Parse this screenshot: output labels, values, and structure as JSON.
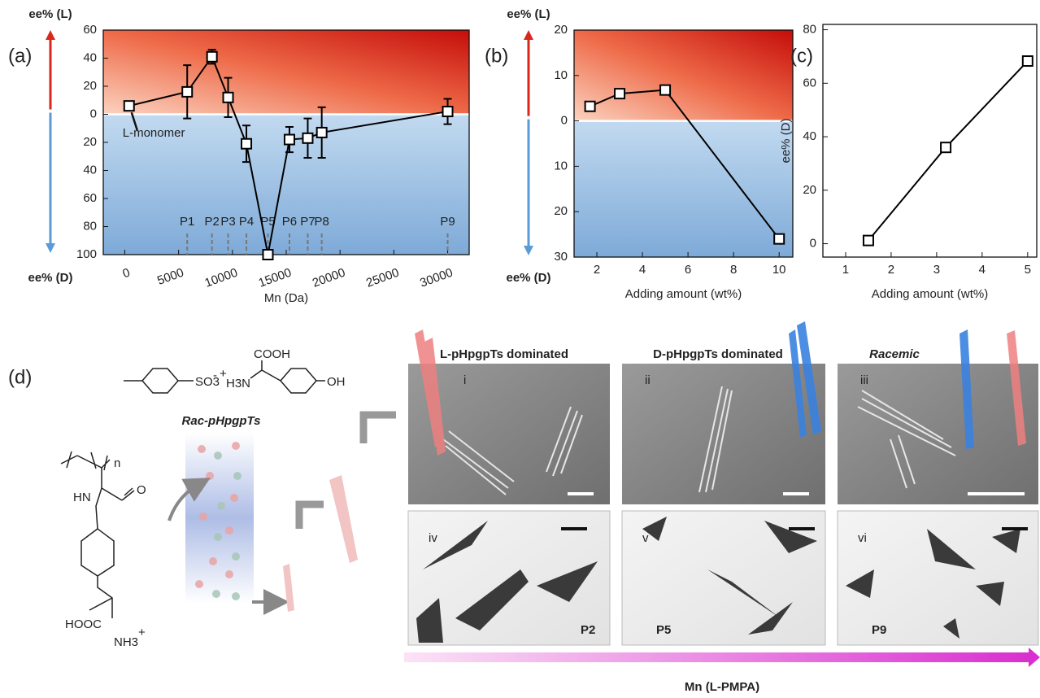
{
  "chart_data": [
    {
      "type": "line",
      "label": "(a)",
      "ylabel_top": "ee% (L)",
      "ylabel_bottom": "ee% (D)",
      "xlabel": "Mn (Da)",
      "x": [
        400,
        5800,
        8100,
        9600,
        11300,
        13300,
        15300,
        17000,
        18300,
        30000
      ],
      "values": [
        6,
        16,
        41,
        12,
        -21,
        -100,
        -18,
        -17,
        -13,
        2
      ],
      "errors": [
        null,
        19,
        5,
        14,
        13,
        null,
        9,
        14,
        18,
        9
      ],
      "color": "#000000",
      "positive_color": "#d9271c",
      "negative_color": "#5b9bd5",
      "tick_color_positive": "#000000",
      "tick_color_negative": "#5b9bd5",
      "xlim": [
        -2000,
        32000
      ],
      "xticks": [
        0,
        5000,
        10000,
        15000,
        20000,
        25000,
        30000
      ],
      "ylim": [
        -100,
        60
      ],
      "yticks": [
        {
          "value": -100,
          "label": "100"
        },
        {
          "value": -80,
          "label": "80"
        },
        {
          "value": -60,
          "label": "60"
        },
        {
          "value": -40,
          "label": "40"
        },
        {
          "value": -20,
          "label": "20"
        },
        0,
        20,
        40,
        60
      ],
      "annotation": "L-monomer",
      "sample_labels": [
        "P1",
        "P2",
        "P3",
        "P4",
        "P5",
        "P6",
        "P7",
        "P8",
        "P9"
      ]
    },
    {
      "type": "line",
      "label": "(b)",
      "ylabel_top": "ee% (L)",
      "ylabel_bottom": "ee% (D)",
      "xlabel": "Adding amount (wt%)",
      "x": [
        1.7,
        3,
        5,
        10
      ],
      "values": [
        3.2,
        6,
        6.8,
        -26
      ],
      "color": "#000000",
      "positive_color": "#d9271c",
      "negative_color": "#5b9bd5",
      "tick_color_positive": "#d9271c",
      "tick_color_negative": "#5b9bd5",
      "xlim": [
        1,
        10.6
      ],
      "xticks": [
        2,
        4,
        6,
        8,
        10
      ],
      "ylim": [
        -30,
        20
      ],
      "yticks": [
        {
          "value": -30,
          "label": "30"
        },
        {
          "value": -20,
          "label": "20"
        },
        {
          "value": -10,
          "label": "10"
        },
        0,
        10,
        20
      ]
    },
    {
      "type": "line",
      "label": "(c)",
      "ylabel": "ee% (D)",
      "xlabel": "Adding amount (wt%)",
      "x": [
        1.5,
        3.2,
        5
      ],
      "values": [
        1.2,
        36,
        68.3
      ],
      "color": "#000000",
      "xlim": [
        0.5,
        5.2
      ],
      "xticks": [
        1,
        2,
        3,
        4,
        5
      ],
      "ylim": [
        -5,
        82
      ],
      "yticks": [
        0,
        20,
        40,
        60,
        80
      ]
    }
  ],
  "panel_d": {
    "label": "(d)",
    "column_label": "Rac-pHpgpTs",
    "chemistry": {
      "tosylate": "SO3",
      "minus": "-",
      "plus": "+",
      "amine": "H3N",
      "acid": "COOH",
      "hydroxyl": "OH",
      "repeat": "n",
      "carbonyl": "O",
      "amide": "HN",
      "carboxyl": "HOOC",
      "ammonium": "NH3",
      "ammonium_plus": "+"
    },
    "sem_images": [
      {
        "title": "L-pHpgpTs dominated",
        "label": "i"
      },
      {
        "title": "D-pHpgpTs dominated",
        "label": "ii"
      },
      {
        "title": "Racemic",
        "label": "iii"
      }
    ],
    "optical_images": [
      {
        "label": "iv",
        "sample": "P2"
      },
      {
        "label": "v",
        "sample": "P5"
      },
      {
        "label": "vi",
        "sample": "P9"
      }
    ],
    "gradient_label": "Mn (L-PMPA)"
  }
}
